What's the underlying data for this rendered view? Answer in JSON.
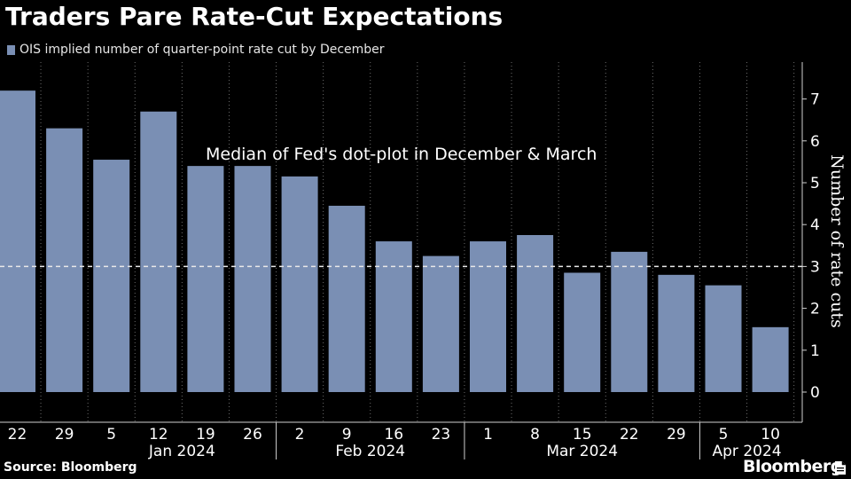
{
  "header": {
    "title": "Traders Pare Rate-Cut Expectations"
  },
  "legend": {
    "label": "OIS implied number of quarter-point rate cut by December"
  },
  "footer": {
    "source": "Source: Bloomberg",
    "brand": "Bloomberg",
    "brand_icon": "document-icon"
  },
  "colors": {
    "background": "#000000",
    "bar": "#7a8fb4",
    "grid": "#888888",
    "text": "#ffffff"
  },
  "chart_data": {
    "type": "bar",
    "title": "Traders Pare Rate-Cut Expectations",
    "ylabel": "Number of rate cuts",
    "y_axis_side": "right",
    "ylim": [
      -0.8,
      7.9
    ],
    "yticks": [
      0,
      1,
      2,
      3,
      4,
      5,
      6,
      7
    ],
    "grid": "vertical dotted",
    "legend_placement": "top-left",
    "categories": [
      "22",
      "29",
      "5",
      "12",
      "19",
      "26",
      "2",
      "9",
      "16",
      "23",
      "1",
      "8",
      "15",
      "22",
      "29",
      "5",
      "10"
    ],
    "months": [
      {
        "label": "Jan 2024",
        "from": 2,
        "to": 5
      },
      {
        "label": "Feb 2024",
        "from": 6,
        "to": 9
      },
      {
        "label": "Mar 2024",
        "from": 10,
        "to": 14
      },
      {
        "label": "Apr 2024",
        "from": 15,
        "to": 16
      }
    ],
    "series": [
      {
        "name": "OIS implied number of quarter-point rate cut by December",
        "values": [
          7.2,
          6.3,
          5.55,
          6.7,
          5.4,
          5.4,
          5.15,
          4.45,
          3.6,
          3.25,
          3.6,
          3.75,
          2.85,
          3.35,
          2.8,
          2.55,
          1.55
        ]
      }
    ],
    "reference_line": {
      "value": 3,
      "style": "dashed",
      "label": "Median of Fed's dot-plot in December & March"
    }
  }
}
